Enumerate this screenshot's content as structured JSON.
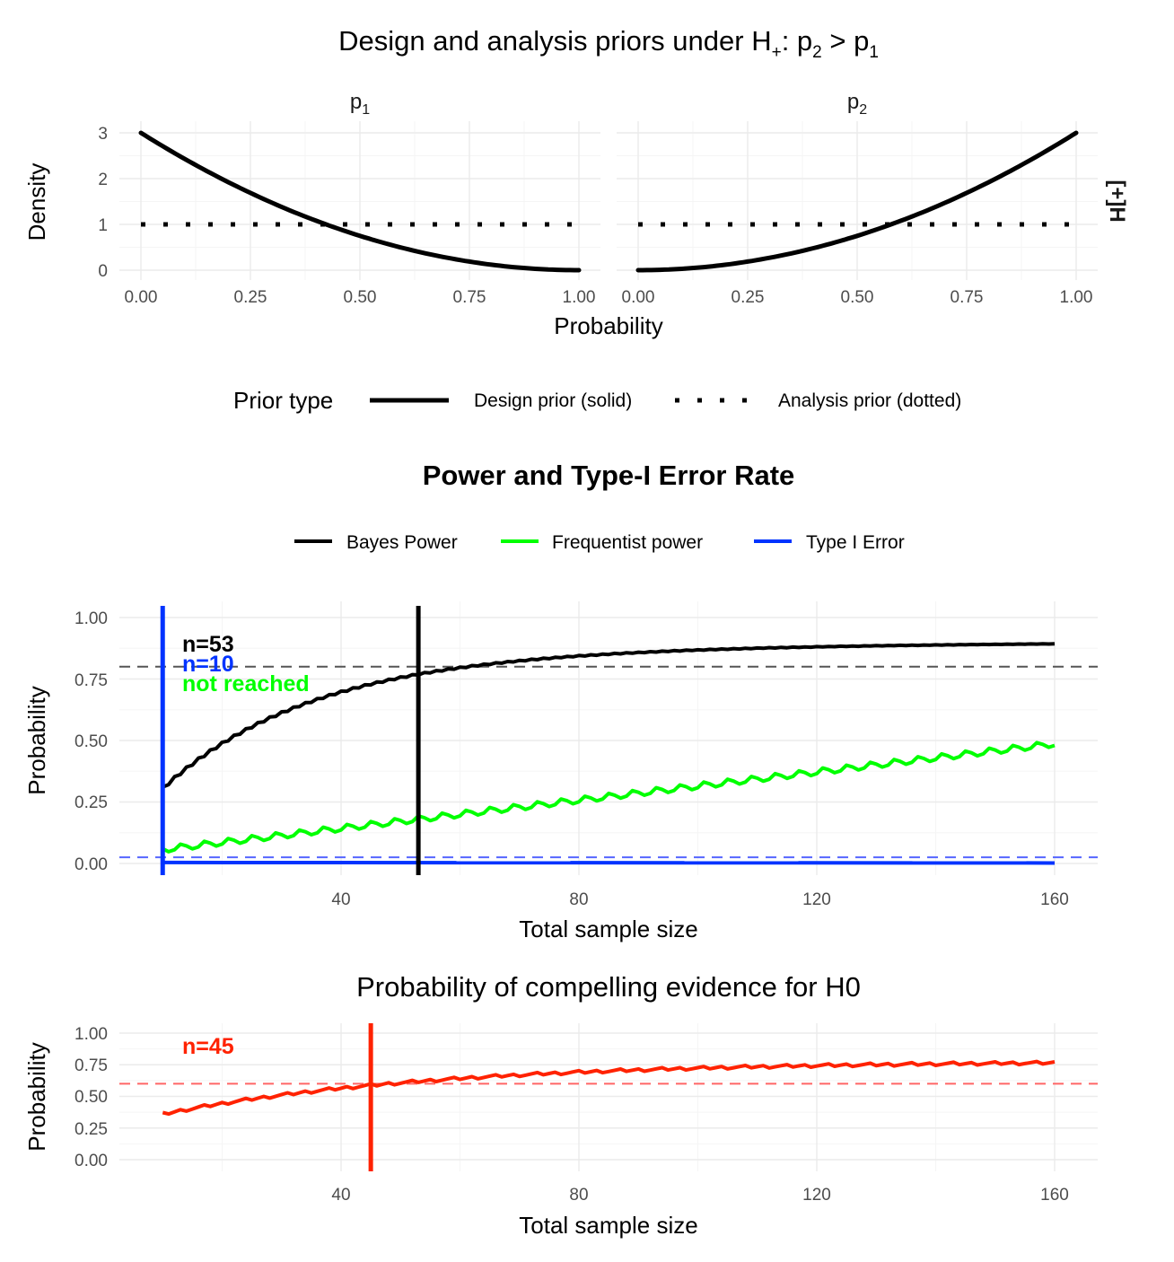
{
  "chart_data": [
    {
      "type": "line",
      "title": "Design and analysis priors under H",
      "title_sub": "+",
      "title_tail": ": p",
      "title_p2_sub": "2",
      "title_gt": " > p",
      "title_p1_sub": "1",
      "facets": [
        {
          "label": "p",
          "label_sub": "1",
          "design": "3*(1-x)^2",
          "analysis": 1
        },
        {
          "label": "p",
          "label_sub": "2",
          "design": "3*x^2",
          "analysis": 1
        }
      ],
      "strip_right": "[+]H",
      "xlabel": "Probability",
      "ylabel": "Density",
      "xlim": [
        0,
        1
      ],
      "ylim": [
        0,
        3
      ],
      "xticks": [
        "0.00",
        "0.25",
        "0.50",
        "0.75",
        "1.00"
      ],
      "yticks": [
        "0",
        "1",
        "2",
        "3"
      ],
      "legend": {
        "title": "Prior type",
        "entries": [
          "Design prior (solid)",
          "Analysis prior (dotted)"
        ],
        "placement": "bottom"
      },
      "grid": true
    },
    {
      "type": "line",
      "title": "Power and Type-I Error Rate",
      "xlabel": "Total sample size",
      "ylabel": "Probability",
      "xlim": [
        10,
        160
      ],
      "ylim": [
        0,
        1
      ],
      "xticks": [
        "40",
        "80",
        "120",
        "160"
      ],
      "yticks": [
        "0.00",
        "0.25",
        "0.50",
        "0.75",
        "1.00"
      ],
      "legend": {
        "placement": "top",
        "entries": [
          "Bayes Power",
          "Frequentist power",
          "Type I Error"
        ]
      },
      "series": [
        {
          "name": "Bayes Power",
          "color": "#000000",
          "start": 0.37,
          "end": 0.9
        },
        {
          "name": "Frequentist power",
          "color": "#00ff00",
          "start": 0.05,
          "end": 0.49
        },
        {
          "name": "Type I Error",
          "color": "#0033ff",
          "start": 0.005,
          "end": 0.002
        }
      ],
      "hlines": [
        {
          "y": 0.8,
          "color": "#555555"
        },
        {
          "y": 0.025,
          "color": "#5566ff"
        }
      ],
      "vlines": [
        {
          "x": 53,
          "color": "#000000"
        },
        {
          "x": 10,
          "color": "#0033ff"
        }
      ],
      "annotations": [
        {
          "text": "n=53",
          "color": "#000000"
        },
        {
          "text": "n=10",
          "color": "#0033ff"
        },
        {
          "text": "not reached",
          "color": "#00ff00"
        }
      ],
      "grid": true
    },
    {
      "type": "line",
      "title": "Probability of compelling evidence for H0",
      "xlabel": "Total sample size",
      "ylabel": "Probability",
      "xlim": [
        10,
        160
      ],
      "ylim": [
        0,
        1
      ],
      "xticks": [
        "40",
        "80",
        "120",
        "160"
      ],
      "yticks": [
        "0.00",
        "0.25",
        "0.50",
        "0.75",
        "1.00"
      ],
      "series": [
        {
          "color": "#ff2200",
          "start": 0.37,
          "end": 0.79
        }
      ],
      "hlines": [
        {
          "y": 0.6,
          "color": "#ff6666"
        }
      ],
      "vlines": [
        {
          "x": 45,
          "color": "#ff2200"
        }
      ],
      "annotations": [
        {
          "text": "n=45",
          "color": "#ff2200"
        }
      ],
      "grid": true
    }
  ]
}
